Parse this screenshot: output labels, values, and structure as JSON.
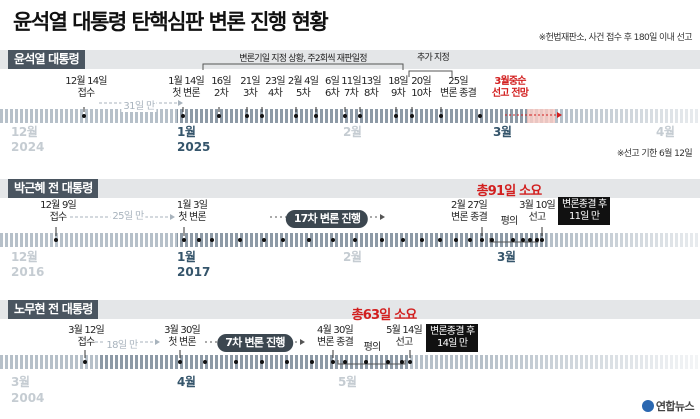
{
  "header": {
    "title": "윤석열 대통령 탄핵심판 변론 진행 현황",
    "note": "※헌법재판소, 사건 접수 후 180일 이내 선고"
  },
  "yoon": {
    "label": "윤석열 대통령",
    "interval": "31일 만",
    "schedule_note": "변론기일 지정 상황, 주2회씩 재판일정",
    "added_note": "추가 지정",
    "deadline_note": "※선고 기한 6월 12일",
    "events": [
      {
        "label": "12월 14일\n접수",
        "style": "normal"
      },
      {
        "label": "1월 14일\n첫 변론",
        "style": "normal"
      },
      {
        "label": "16일\n2차",
        "style": "normal"
      },
      {
        "label": "21일\n3차",
        "style": "normal"
      },
      {
        "label": "23일\n4차",
        "style": "normal"
      },
      {
        "label": "2월 4일\n5차",
        "style": "normal"
      },
      {
        "label": "6일\n6차",
        "style": "normal"
      },
      {
        "label": "11일\n7차",
        "style": "normal"
      },
      {
        "label": "13일\n8차",
        "style": "normal"
      },
      {
        "label": "18일\n9차",
        "style": "normal"
      },
      {
        "label": "20일\n10차",
        "style": "normal"
      },
      {
        "label": "25일\n변론 종결",
        "style": "normal"
      },
      {
        "label": "3월중순\n선고 전망",
        "style": "red"
      }
    ],
    "axis": [
      {
        "month": "12월",
        "year": "2024",
        "style": "dim"
      },
      {
        "month": "1월",
        "year": "2025",
        "style": "strong"
      },
      {
        "month": "2월",
        "year": "",
        "style": "dim"
      },
      {
        "month": "3월",
        "year": "",
        "style": "strong"
      },
      {
        "month": "4월",
        "year": "",
        "style": "dim"
      }
    ]
  },
  "park": {
    "label": "박근혜 전 대통령",
    "total": "총91일 소요",
    "interval": "25일 만",
    "pill": "17차 변론 진행",
    "deliberation": "평의",
    "box": "변론종결 후\n11일 만",
    "events": [
      {
        "label": "12월 9일\n접수"
      },
      {
        "label": "1월 3일\n첫 변론"
      },
      {
        "label": "2월 27일\n변론 종결"
      },
      {
        "label": "3월 10일\n선고"
      }
    ],
    "axis": [
      {
        "month": "12월",
        "year": "2016",
        "style": "dim"
      },
      {
        "month": "1월",
        "year": "2017",
        "style": "strong"
      },
      {
        "month": "2월",
        "year": "",
        "style": "dim"
      },
      {
        "month": "3월",
        "year": "",
        "style": "strong"
      }
    ]
  },
  "roh": {
    "label": "노무현 전 대통령",
    "total": "총63일 소요",
    "interval": "18일 만",
    "pill": "7차 변론 진행",
    "deliberation": "평의",
    "box": "변론종결 후\n14일 만",
    "events": [
      {
        "label": "3월 12일\n접수"
      },
      {
        "label": "3월 30일\n첫 변론"
      },
      {
        "label": "4월 30일\n변론 종결"
      },
      {
        "label": "5월 14일\n선고"
      }
    ],
    "axis": [
      {
        "month": "3월",
        "year": "2004",
        "style": "dim"
      },
      {
        "month": "4월",
        "year": "",
        "style": "strong"
      },
      {
        "month": "5월",
        "year": "",
        "style": "dim"
      }
    ]
  },
  "logo": "연합뉴스",
  "colors": {
    "band": "#b6c0c9",
    "band_active": "#35556b",
    "red": "#d21e1e",
    "header_label": "#4a5560"
  }
}
